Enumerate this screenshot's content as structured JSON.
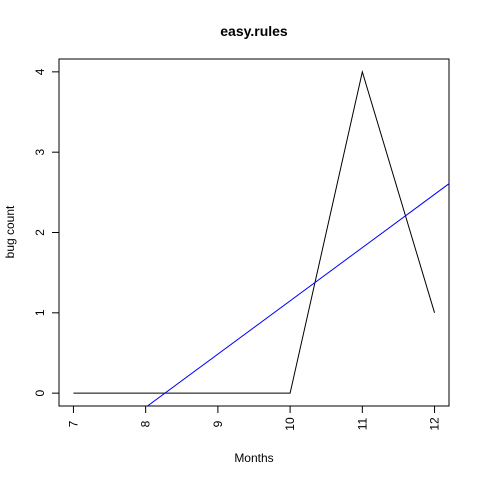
{
  "chart_data": {
    "type": "line",
    "title": "easy.rules",
    "xlabel": "Months",
    "ylabel": "bug count",
    "xlim": [
      6.8,
      12.2
    ],
    "ylim": [
      -0.16,
      4.16
    ],
    "x_ticks": [
      7,
      8,
      9,
      10,
      11,
      12
    ],
    "y_ticks": [
      0,
      1,
      2,
      3,
      4
    ],
    "x_tick_labels": [
      "7",
      "8",
      "9",
      "10",
      "11",
      "12"
    ],
    "y_tick_labels": [
      "0",
      "1",
      "2",
      "3",
      "4"
    ],
    "grid": false,
    "series": [
      {
        "color": "#000000",
        "x": [
          7,
          8,
          9,
          10,
          11,
          12
        ],
        "y": [
          0,
          0,
          0,
          0,
          4,
          1
        ]
      }
    ],
    "trend_line": {
      "color": "#0000ff",
      "intercept": -5.48,
      "slope": 0.6629
    }
  }
}
